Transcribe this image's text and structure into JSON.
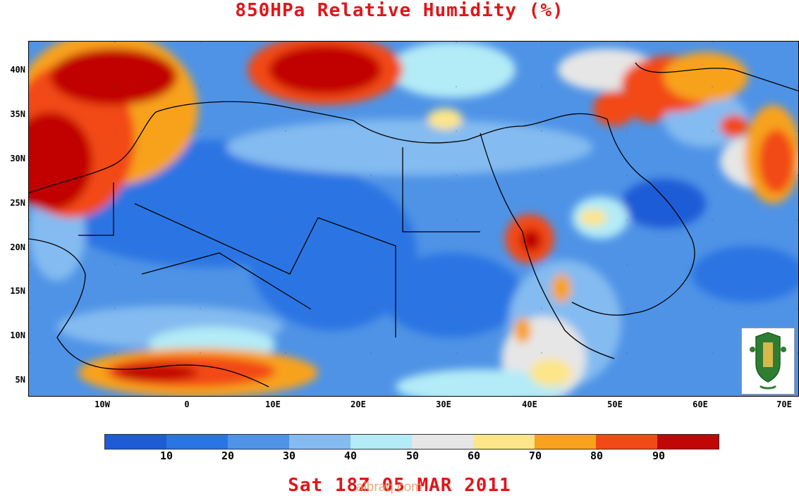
{
  "title": "850HPa Relative Humidity (%)",
  "footer": "Sat 18Z 05 MAR 2011",
  "watermark": "albraq.com",
  "map": {
    "lat_range": [
      3,
      43
    ],
    "lon_range": [
      -20,
      71
    ],
    "lat_labels": [
      "40N",
      "35N",
      "30N",
      "25N",
      "20N",
      "15N",
      "10N",
      "5N"
    ],
    "lon_labels": [
      "10W",
      "0",
      "10E",
      "20E",
      "30E",
      "40E",
      "50E",
      "60E",
      "70E"
    ]
  },
  "colorbar": {
    "colors": [
      "#1e5cd6",
      "#2a74e3",
      "#4f93e6",
      "#84bbf0",
      "#b3ebf7",
      "#e6e6e6",
      "#fde58a",
      "#f8a21e",
      "#f24a17",
      "#c10606"
    ],
    "labels": [
      "10",
      "20",
      "30",
      "40",
      "50",
      "60",
      "70",
      "80",
      "90"
    ]
  },
  "logo": "university-emblem"
}
